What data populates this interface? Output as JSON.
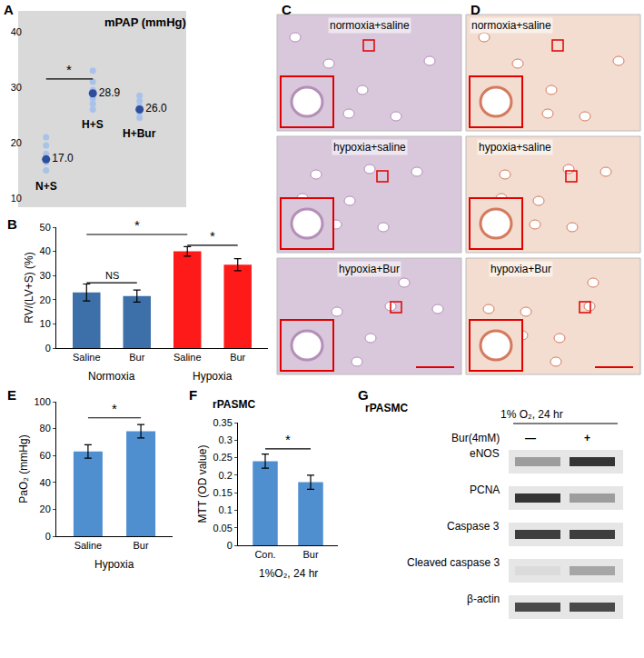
{
  "chart_data": [
    {
      "type": "scatter",
      "panel": "A",
      "title": "mPAP (mmHg)",
      "categories": [
        "N+S",
        "H+S",
        "H+Bur"
      ],
      "series": [
        {
          "color": "#a8c2ea",
          "values": [
            [
              15,
              16.5,
              18,
              19.5,
              21
            ],
            [
              26,
              27,
              28,
              29.5,
              31,
              33
            ],
            [
              24.5,
              25.5,
              26.5,
              27.5,
              28.5
            ]
          ]
        },
        {
          "color": "#2f4d9c",
          "values": [
            17.0,
            28.9,
            26.0
          ],
          "value_labels": [
            "17.0",
            "28.9",
            "26.0"
          ],
          "data_labels": true
        }
      ],
      "ylim": [
        10,
        40
      ],
      "yticks": [
        10,
        20,
        30,
        40
      ],
      "tick_labels": "y",
      "grid": false,
      "significance": [
        {
          "from": 0,
          "to": 1,
          "y": 31.5,
          "label": "*"
        }
      ]
    },
    {
      "type": "bar",
      "panel": "B",
      "ylabel": "RV/(LV+S) (%)",
      "categories": [
        "Saline",
        "Bur",
        "Saline",
        "Bur"
      ],
      "groups": [
        {
          "label": "Normoxia",
          "span": [
            0,
            1
          ]
        },
        {
          "label": "Hypoxia",
          "span": [
            2,
            3
          ]
        }
      ],
      "values": [
        23,
        21.5,
        40,
        34.5
      ],
      "errors": [
        3.5,
        2.5,
        2,
        2.5
      ],
      "colors": [
        "#3d6fa8",
        "#3d6fa8",
        "#ff1a1a",
        "#ff1a1a"
      ],
      "ylim": [
        0,
        50
      ],
      "yticks": [
        0,
        10,
        20,
        30,
        40,
        50
      ],
      "grid": false,
      "significance": [
        {
          "from": 0,
          "to": 1,
          "y": 27,
          "label": "NS"
        },
        {
          "from": 0,
          "to": 2,
          "y": 47,
          "label": "*"
        },
        {
          "from": 2,
          "to": 3,
          "y": 42.5,
          "label": "*"
        }
      ]
    },
    {
      "type": "bar",
      "panel": "E",
      "ylabel": "PaO₂ (mmHg)",
      "categories": [
        "Saline",
        "Bur"
      ],
      "groups": [
        {
          "label": "Hypoxia",
          "span": [
            0,
            1
          ]
        }
      ],
      "values": [
        63,
        78
      ],
      "errors": [
        5,
        5
      ],
      "color": "#4f8fd0",
      "ylim": [
        0,
        100
      ],
      "yticks": [
        0,
        20,
        40,
        60,
        80,
        100
      ],
      "grid": false,
      "significance": [
        {
          "from": 0,
          "to": 1,
          "y": 88,
          "label": "*"
        }
      ]
    },
    {
      "type": "bar",
      "panel": "F",
      "subtitle": "rPASMC",
      "ylabel": "MTT (OD value)",
      "categories": [
        "Con.",
        "Bur"
      ],
      "groups": [
        {
          "label": "1%O₂, 24 hr",
          "span": [
            0,
            1
          ]
        }
      ],
      "values": [
        0.24,
        0.18
      ],
      "errors": [
        0.02,
        0.02
      ],
      "color": "#4f8fd0",
      "ylim": [
        0,
        0.35
      ],
      "yticks": [
        0,
        0.05,
        0.1,
        0.15,
        0.2,
        0.25,
        0.3,
        0.35
      ],
      "grid": false,
      "significance": [
        {
          "from": 0,
          "to": 1,
          "y": 0.275,
          "label": "*"
        }
      ]
    }
  ],
  "histology": [
    {
      "panel": "C",
      "images": [
        "normoxia+saline",
        "hypoxia+saline",
        "hypoxia+Bur"
      ]
    },
    {
      "panel": "D",
      "images": [
        "normoxia+saline",
        "hypoxia+saline",
        "hypoxia+Bur"
      ]
    }
  ],
  "western_blot": {
    "panel": "G",
    "title": "rPASMC",
    "condition": "1% O₂, 24 hr",
    "treatment": "Bur(4mM)",
    "lanes": [
      "—",
      "+"
    ],
    "rows": [
      {
        "label": "eNOS",
        "band_intensity": [
          0.35,
          0.85
        ]
      },
      {
        "label": "PCNA",
        "band_intensity": [
          0.85,
          0.35
        ]
      },
      {
        "label": "Caspase 3",
        "band_intensity": [
          0.8,
          0.8
        ]
      },
      {
        "label": "Cleaved caspase 3",
        "band_intensity": [
          0.05,
          0.3
        ]
      },
      {
        "label": "β-actin",
        "band_intensity": [
          0.75,
          0.75
        ]
      }
    ]
  }
}
